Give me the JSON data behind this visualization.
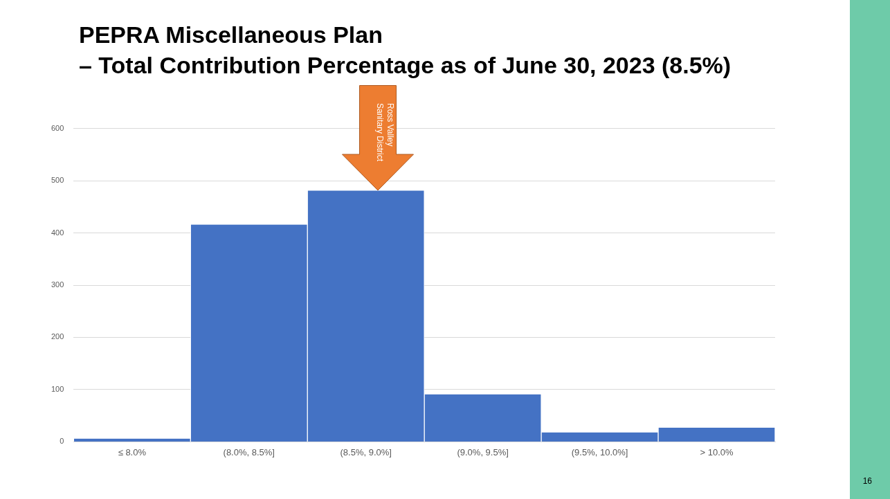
{
  "chart_data": {
    "type": "bar",
    "title": "PEPRA Miscellaneous Plan\n– Total Contribution Percentage as of June 30, 2023 (8.5%)",
    "categories": [
      "≤ 8.0%",
      "(8.0%, 8.5%]",
      "(8.5%, 9.0%]",
      "(9.0%, 9.5%]",
      "(9.5%, 10.0%]",
      "> 10.0%"
    ],
    "values": [
      6,
      416,
      481,
      91,
      18,
      27
    ],
    "color": "#4472c4",
    "ylim": [
      0,
      600
    ],
    "yticks": [
      0,
      100,
      200,
      300,
      400,
      500,
      600
    ],
    "grid": "y",
    "legend": false,
    "annotations": [
      "Ross Valley\nSanitary District",
      "16"
    ]
  }
}
